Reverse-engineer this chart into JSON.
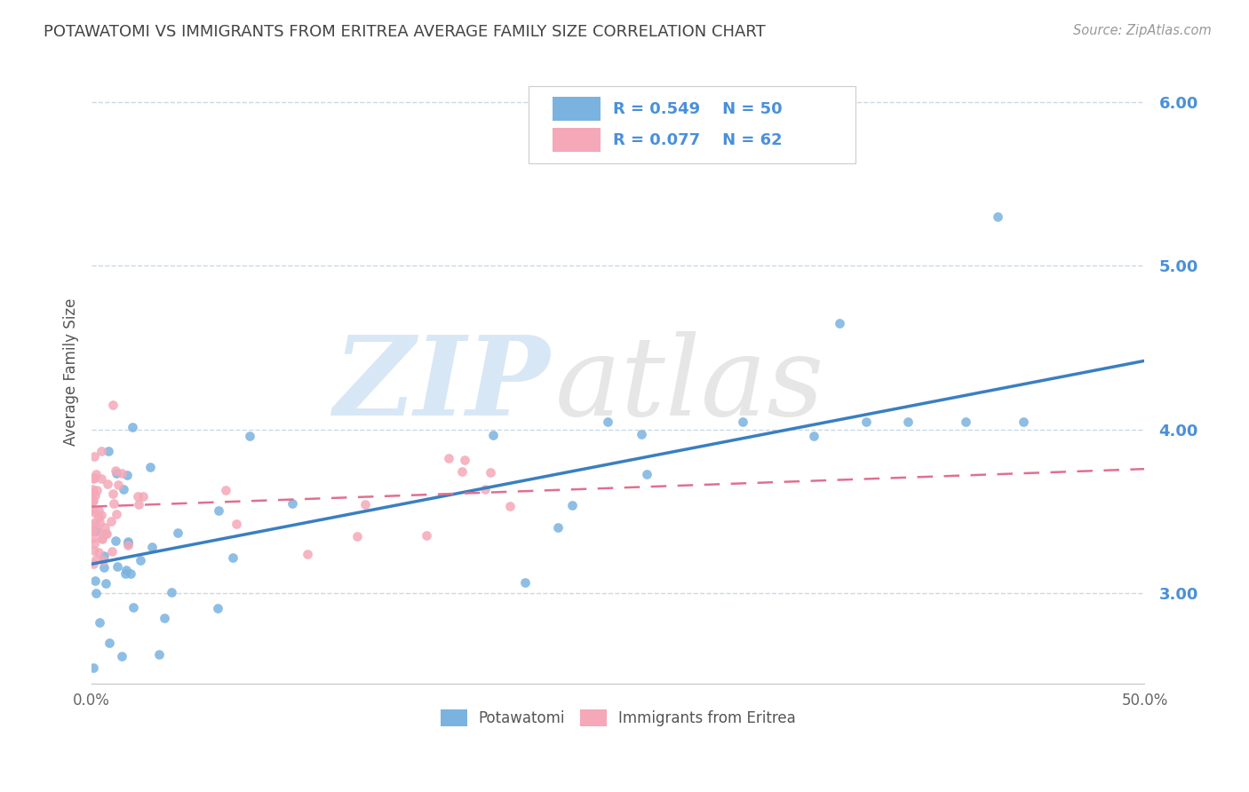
{
  "title": "POTAWATOMI VS IMMIGRANTS FROM ERITREA AVERAGE FAMILY SIZE CORRELATION CHART",
  "source": "Source: ZipAtlas.com",
  "ylabel": "Average Family Size",
  "watermark": "ZIPatlas",
  "xlim": [
    0.0,
    50.0
  ],
  "ylim": [
    2.45,
    6.25
  ],
  "yticks": [
    3.0,
    4.0,
    5.0,
    6.0
  ],
  "xtick_labels": [
    "0.0%",
    "50.0%"
  ],
  "legend_label1": "Potawatomi",
  "legend_label2": "Immigrants from Eritrea",
  "R1": 0.549,
  "N1": 50,
  "R2": 0.077,
  "N2": 62,
  "color1": "#7ab3e0",
  "color2": "#f4a8b8",
  "trend_color1": "#3a7fc1",
  "trend_color2": "#e07090",
  "background_color": "#ffffff",
  "grid_color": "#c8d8ea",
  "title_color": "#444444",
  "ytick_color": "#4a90d9",
  "legend_text_color": "#4a90d9",
  "trend1_x0": 0.0,
  "trend1_y0": 3.18,
  "trend1_x1": 50.0,
  "trend1_y1": 4.42,
  "trend2_x0": 0.0,
  "trend2_y0": 3.53,
  "trend2_x1": 50.0,
  "trend2_y1": 3.76
}
